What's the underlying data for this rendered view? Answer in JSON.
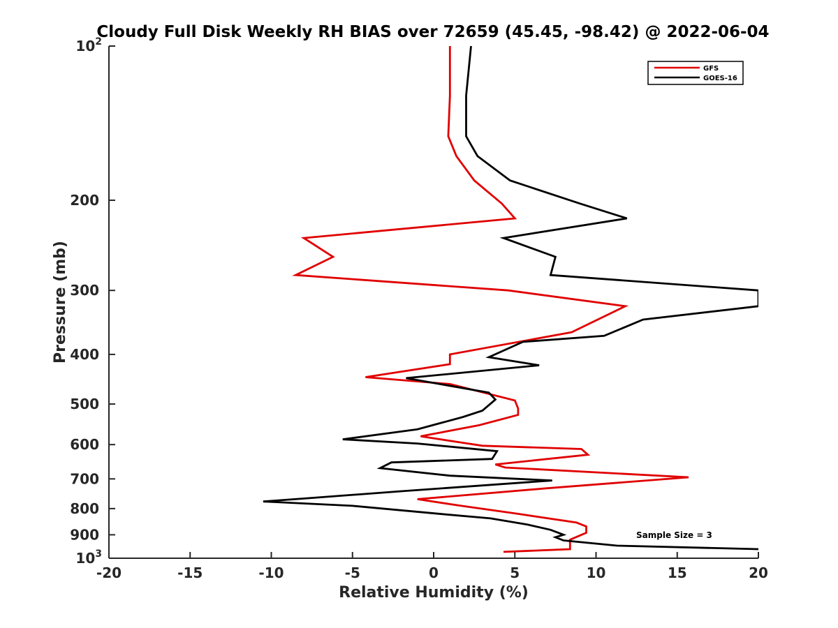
{
  "chart_data": {
    "type": "line",
    "title": "Cloudy Full Disk Weekly RH BIAS over 72659 (45.45, -98.42) @ 2022-06-04",
    "xlabel": "Relative Humidity (%)",
    "ylabel": "Pressure (mb)",
    "xlim": [
      -20,
      20
    ],
    "ylim": [
      100,
      1000
    ],
    "yscale": "log",
    "yreversed": true,
    "grid": false,
    "legend_position": "top-right",
    "x_ticks": [
      "-20",
      "-15",
      "-10",
      "-5",
      "0",
      "5",
      "10",
      "15",
      "20"
    ],
    "y_ticks": [
      {
        "value": 100,
        "base": "10",
        "exp": "2"
      },
      {
        "value": 200,
        "label": "200"
      },
      {
        "value": 300,
        "label": "300"
      },
      {
        "value": 400,
        "label": "400"
      },
      {
        "value": 500,
        "label": "500"
      },
      {
        "value": 600,
        "label": "600"
      },
      {
        "value": 700,
        "label": "700"
      },
      {
        "value": 800,
        "label": "800"
      },
      {
        "value": 900,
        "label": "900"
      },
      {
        "value": 1000,
        "base": "10",
        "exp": "3"
      }
    ],
    "annotation": "Sample Size = 3",
    "series": [
      {
        "name": "GFS",
        "color": "#e00000",
        "points": [
          [
            1.0,
            100
          ],
          [
            1.0,
            125
          ],
          [
            0.9,
            150
          ],
          [
            1.4,
            164
          ],
          [
            2.5,
            183
          ],
          [
            4.2,
            203
          ],
          [
            5.0,
            217
          ],
          [
            -8.0,
            237
          ],
          [
            -6.2,
            258
          ],
          [
            -8.5,
            280
          ],
          [
            4.6,
            300
          ],
          [
            11.8,
            322
          ],
          [
            8.5,
            362
          ],
          [
            1.0,
            400
          ],
          [
            1.0,
            418
          ],
          [
            -4.2,
            443
          ],
          [
            1.0,
            457
          ],
          [
            5.0,
            492
          ],
          [
            5.2,
            510
          ],
          [
            5.2,
            525
          ],
          [
            2.8,
            550
          ],
          [
            -0.8,
            578
          ],
          [
            3.0,
            603
          ],
          [
            9.1,
            612
          ],
          [
            9.5,
            628
          ],
          [
            3.8,
            656
          ],
          [
            4.4,
            665
          ],
          [
            15.7,
            695
          ],
          [
            7.0,
            730
          ],
          [
            -1.0,
            767
          ],
          [
            1.7,
            790
          ],
          [
            5.2,
            819
          ],
          [
            8.8,
            852
          ],
          [
            9.4,
            867
          ],
          [
            9.4,
            892
          ],
          [
            8.4,
            920
          ],
          [
            8.4,
            960
          ],
          [
            4.3,
            972
          ]
        ]
      },
      {
        "name": "GOES-16",
        "color": "#000000",
        "points": [
          [
            2.3,
            100
          ],
          [
            2.0,
            125
          ],
          [
            2.0,
            150
          ],
          [
            2.7,
            164
          ],
          [
            4.7,
            183
          ],
          [
            9.0,
            203
          ],
          [
            11.9,
            217
          ],
          [
            4.3,
            237
          ],
          [
            7.5,
            258
          ],
          [
            7.2,
            280
          ],
          [
            20.0,
            300
          ],
          [
            20.0,
            322
          ],
          [
            12.9,
            342
          ],
          [
            10.5,
            368
          ],
          [
            5.5,
            378
          ],
          [
            3.4,
            405
          ],
          [
            6.5,
            420
          ],
          [
            -1.7,
            445
          ],
          [
            3.4,
            475
          ],
          [
            3.8,
            490
          ],
          [
            3.0,
            515
          ],
          [
            1.8,
            530
          ],
          [
            -1.0,
            560
          ],
          [
            -5.6,
            586
          ],
          [
            -1.0,
            597
          ],
          [
            3.9,
            618
          ],
          [
            3.6,
            640
          ],
          [
            -2.6,
            650
          ],
          [
            -3.3,
            667
          ],
          [
            1.0,
            690
          ],
          [
            7.3,
            705
          ],
          [
            -2.0,
            740
          ],
          [
            -8.1,
            765
          ],
          [
            -10.5,
            775
          ],
          [
            -5.0,
            790
          ],
          [
            0.5,
            820
          ],
          [
            3.5,
            836
          ],
          [
            5.8,
            860
          ],
          [
            7.2,
            880
          ],
          [
            8.0,
            900
          ],
          [
            7.5,
            910
          ],
          [
            8.0,
            923
          ],
          [
            11.3,
            945
          ],
          [
            20.0,
            960
          ]
        ]
      }
    ]
  }
}
